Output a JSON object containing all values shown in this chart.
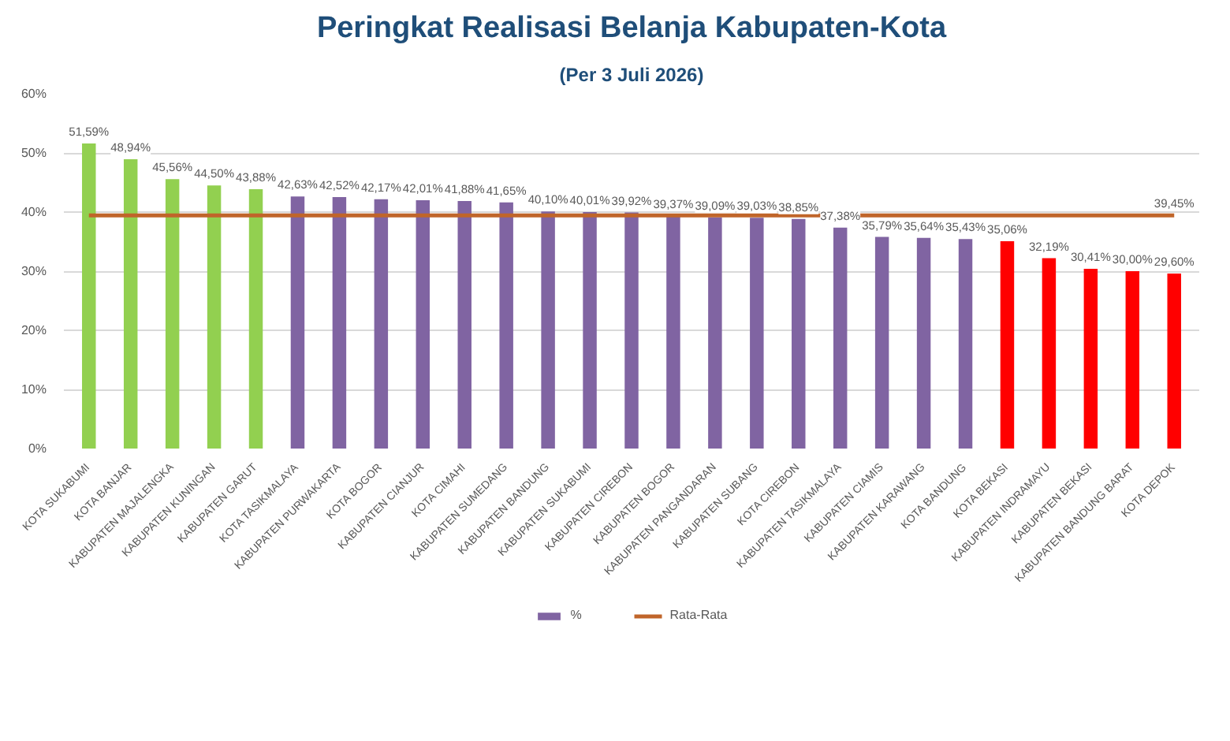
{
  "chart_data": {
    "type": "bar",
    "title": "Peringkat Realisasi Belanja Kabupaten-Kota",
    "subtitle": "(Per 3 Juli 2026)",
    "categories": [
      "KOTA SUKABUMI",
      "KOTA BANJAR",
      "KABUPATEN MAJALENGKA",
      "KABUPATEN KUNINGAN",
      "KABUPATEN GARUT",
      "KOTA TASIKMALAYA",
      "KABUPATEN PURWAKARTA",
      "KOTA BOGOR",
      "KABUPATEN CIANJUR",
      "KOTA CIMAHI",
      "KABUPATEN SUMEDANG",
      "KABUPATEN BANDUNG",
      "KABUPATEN SUKABUMI",
      "KABUPATEN CIREBON",
      "KABUPATEN BOGOR",
      "KABUPATEN PANGANDARAN",
      "KABUPATEN SUBANG",
      "KOTA CIREBON",
      "KABUPATEN TASIKMALAYA",
      "KABUPATEN CIAMIS",
      "KABUPATEN KARAWANG",
      "KOTA BANDUNG",
      "KOTA BEKASI",
      "KABUPATEN INDRAMAYU",
      "KABUPATEN BEKASI",
      "KABUPATEN BANDUNG BARAT",
      "KOTA DEPOK"
    ],
    "series": [
      {
        "name": "%",
        "color": "#8064a2",
        "colors": [
          "#92d050",
          "#92d050",
          "#92d050",
          "#92d050",
          "#92d050",
          "#8064a2",
          "#8064a2",
          "#8064a2",
          "#8064a2",
          "#8064a2",
          "#8064a2",
          "#8064a2",
          "#8064a2",
          "#8064a2",
          "#8064a2",
          "#8064a2",
          "#8064a2",
          "#8064a2",
          "#8064a2",
          "#8064a2",
          "#8064a2",
          "#8064a2",
          "#ff0000",
          "#ff0000",
          "#ff0000",
          "#ff0000",
          "#ff0000"
        ],
        "values": [
          51.59,
          48.94,
          45.56,
          44.5,
          43.88,
          42.63,
          42.52,
          42.17,
          42.01,
          41.88,
          41.65,
          40.1,
          40.01,
          39.92,
          39.37,
          39.09,
          39.03,
          38.85,
          37.38,
          35.79,
          35.64,
          35.43,
          35.06,
          32.19,
          30.41,
          30.0,
          29.6
        ],
        "value_labels": [
          "51,59%",
          "48,94%",
          "45,56%",
          "44,50%",
          "43,88%",
          "42,63%",
          "42,52%",
          "42,17%",
          "42,01%",
          "41,88%",
          "41,65%",
          "40,10%",
          "40,01%",
          "39,92%",
          "39,37%",
          "39,09%",
          "39,03%",
          "38,85%",
          "37,38%",
          "35,79%",
          "35,64%",
          "35,43%",
          "35,06%",
          "32,19%",
          "30,41%",
          "30,00%",
          "29,60%"
        ]
      },
      {
        "name": "Rata-Rata",
        "type": "line",
        "color": "#c0652a",
        "values": [
          39.45,
          39.45,
          39.45,
          39.45,
          39.45,
          39.45,
          39.45,
          39.45,
          39.45,
          39.45,
          39.45,
          39.45,
          39.45,
          39.45,
          39.45,
          39.45,
          39.45,
          39.45,
          39.45,
          39.45,
          39.45,
          39.45,
          39.45,
          39.45,
          39.45,
          39.45,
          39.45
        ],
        "value_labels": [
          null,
          null,
          null,
          null,
          null,
          null,
          null,
          null,
          null,
          null,
          null,
          null,
          null,
          null,
          null,
          null,
          null,
          null,
          null,
          null,
          null,
          null,
          null,
          null,
          null,
          null,
          "39,45%"
        ]
      }
    ],
    "ylim": [
      0,
      60
    ],
    "yticks": [
      {
        "value": 0,
        "label": "0%"
      },
      {
        "value": 10,
        "label": "10%"
      },
      {
        "value": 20,
        "label": "20%"
      },
      {
        "value": 30,
        "label": "30%"
      },
      {
        "value": 40,
        "label": "40%"
      },
      {
        "value": 50,
        "label": "50%"
      },
      {
        "value": 60,
        "label": "60%"
      }
    ],
    "grid": "y",
    "legend": "bottom"
  }
}
